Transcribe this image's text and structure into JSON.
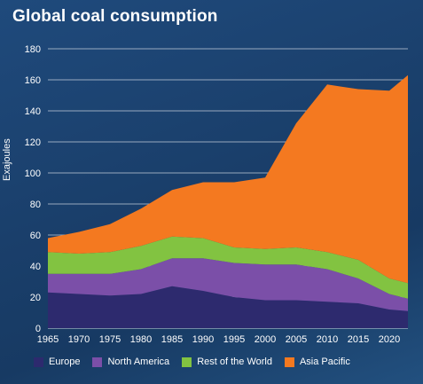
{
  "chart_data": {
    "type": "area",
    "stacked": true,
    "title": "Global coal consumption",
    "ylabel": "Exajoules",
    "xlabel": "",
    "ylim": [
      0,
      180
    ],
    "xlim": [
      1965,
      2023
    ],
    "yticks": [
      0,
      20,
      40,
      60,
      80,
      100,
      120,
      140,
      160,
      180
    ],
    "xticks": [
      1965,
      1970,
      1975,
      1980,
      1985,
      1990,
      1995,
      2000,
      2005,
      2010,
      2015,
      2020
    ],
    "grid": "horizontal",
    "legend_position": "bottom",
    "x": [
      1965,
      1970,
      1975,
      1980,
      1985,
      1990,
      1995,
      2000,
      2005,
      2010,
      2015,
      2020,
      2023
    ],
    "series": [
      {
        "name": "Europe",
        "color": "#2d2a6e",
        "values": [
          23,
          22,
          21,
          22,
          27,
          24,
          20,
          18,
          18,
          17,
          16,
          12,
          11
        ]
      },
      {
        "name": "North America",
        "color": "#7b4fa8",
        "values": [
          12,
          13,
          14,
          16,
          18,
          21,
          22,
          23,
          23,
          21,
          16,
          10,
          8
        ]
      },
      {
        "name": "Rest of the World",
        "color": "#82c341",
        "values": [
          14,
          13,
          14,
          15,
          14,
          13,
          10,
          10,
          11,
          11,
          12,
          10,
          10
        ]
      },
      {
        "name": "Asia Pacific",
        "color": "#f47920",
        "values": [
          9,
          14,
          18,
          24,
          30,
          36,
          42,
          46,
          80,
          108,
          110,
          121,
          134
        ]
      }
    ]
  }
}
